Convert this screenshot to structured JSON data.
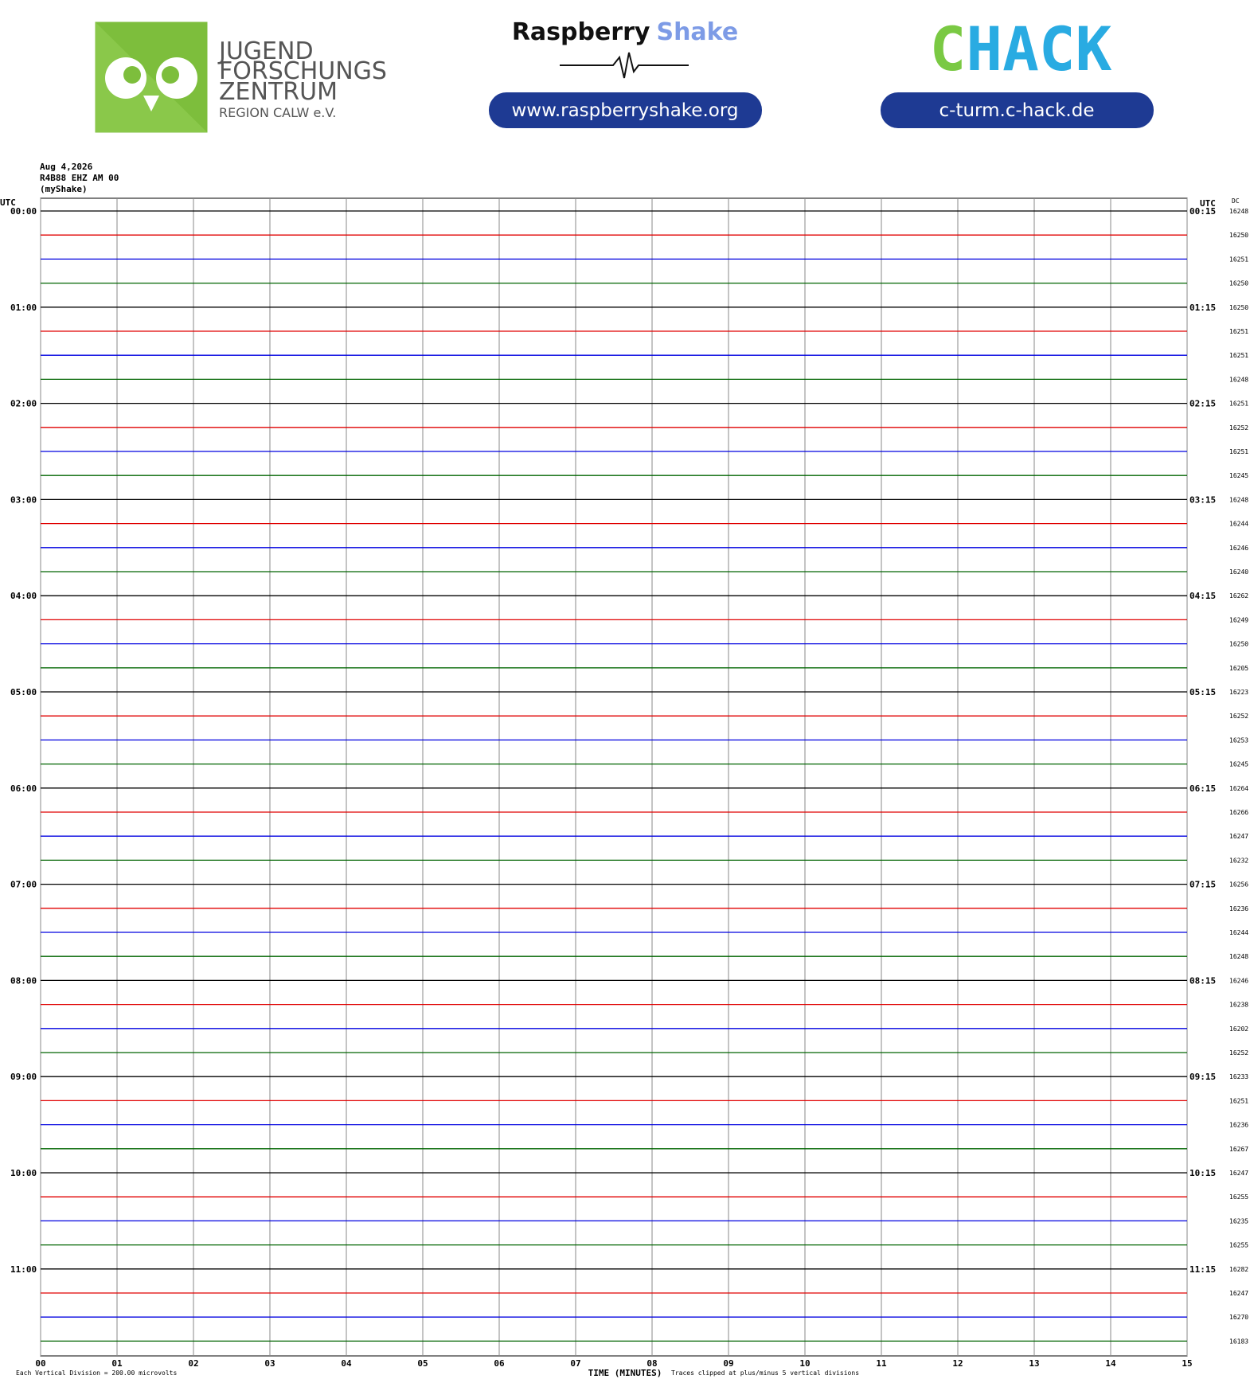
{
  "header": {
    "jfz_lines": [
      "JUGEND",
      "FORSCHUNGS",
      "ZENTRUM",
      "REGION CALW e.V."
    ],
    "rs_word1": "Raspberry",
    "rs_word2": "Shake",
    "rs_url": "www.raspberryshake.org",
    "chack_c": "C",
    "chack_rest": "HACK",
    "chack_url": "c-turm.c-hack.de"
  },
  "chart_data": {
    "type": "helicorder",
    "station": [
      "Aug 4,2026",
      "R4B88 EHZ AM 00",
      "(myShake)"
    ],
    "left_unit": "UTC",
    "right_unit": "UTC",
    "dc_header": "DC",
    "left_labels": [
      "00:00",
      "01:00",
      "02:00",
      "03:00",
      "04:00",
      "05:00",
      "06:00",
      "07:00",
      "08:00",
      "09:00",
      "10:00",
      "11:00"
    ],
    "right_labels": [
      "00:15",
      "01:15",
      "02:15",
      "03:15",
      "04:15",
      "05:15",
      "06:15",
      "07:15",
      "08:15",
      "09:15",
      "10:15",
      "11:15"
    ],
    "trace_colors": [
      "#000000",
      "#e00000",
      "#0000e0",
      "#006400"
    ],
    "dc": [
      16248,
      16250,
      16251,
      16250,
      16250,
      16251,
      16251,
      16248,
      16251,
      16252,
      16251,
      16245,
      16248,
      16244,
      16246,
      16240,
      16262,
      16249,
      16250,
      16205,
      16223,
      16252,
      16253,
      16245,
      16264,
      16266,
      16247,
      16232,
      16256,
      16236,
      16244,
      16248,
      16246,
      16238,
      16202,
      16252,
      16233,
      16251,
      16236,
      16267,
      16247,
      16255,
      16235,
      16255,
      16282,
      16247,
      16270,
      16183
    ],
    "xlim": [
      0,
      15
    ],
    "xticks": [
      {
        "value": 0,
        "label": "00"
      },
      {
        "value": 1,
        "label": "01"
      },
      {
        "value": 2,
        "label": "02"
      },
      {
        "value": 3,
        "label": "03"
      },
      {
        "value": 4,
        "label": "04"
      },
      {
        "value": 5,
        "label": "05"
      },
      {
        "value": 6,
        "label": "06"
      },
      {
        "value": 7,
        "label": "07"
      },
      {
        "value": 8,
        "label": "08"
      },
      {
        "value": 9,
        "label": "09"
      },
      {
        "value": 10,
        "label": "10"
      },
      {
        "value": 11,
        "label": "11"
      },
      {
        "value": 12,
        "label": "12"
      },
      {
        "value": 13,
        "label": "13"
      },
      {
        "value": 14,
        "label": "14"
      },
      {
        "value": 15,
        "label": "15"
      }
    ],
    "xlabel": "TIME (MINUTES)",
    "footer_left": "Each Vertical Division =  200.00 microvolts",
    "footer_right": "Traces clipped at plus/minus 5 vertical divisions"
  }
}
